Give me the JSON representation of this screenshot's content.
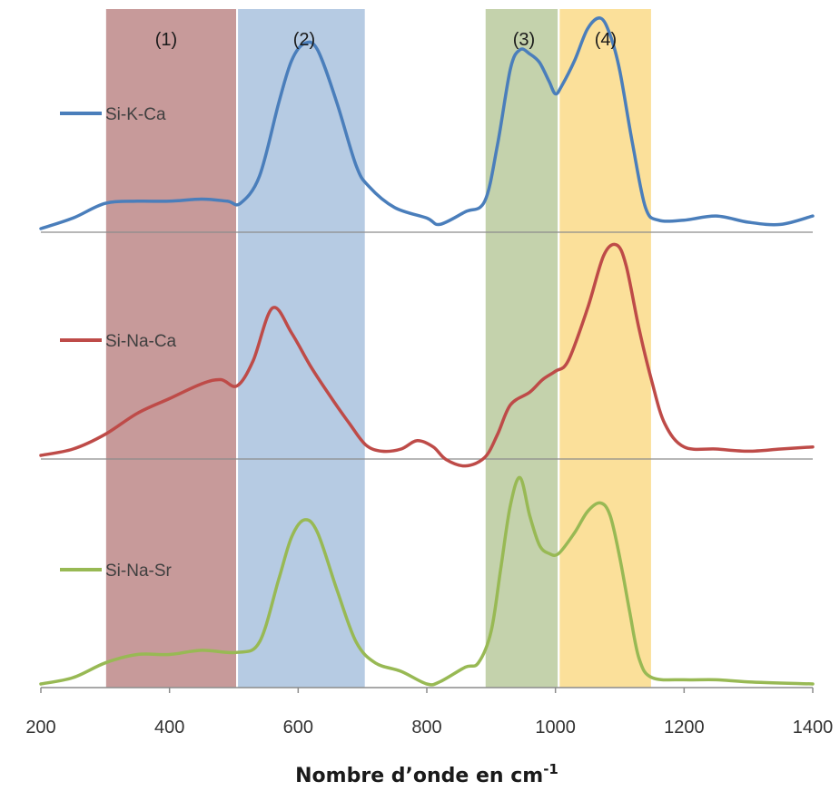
{
  "chart_data": {
    "type": "line",
    "xlabel": "Nombre d’onde en cm",
    "xlabel_sup": "-1",
    "xlim": [
      200,
      1400
    ],
    "xticks": [
      200,
      400,
      600,
      800,
      1000,
      1200,
      1400
    ],
    "grid": false,
    "bands": [
      {
        "label": "(1)",
        "from": 300,
        "to": 505,
        "color": "#c79a9a"
      },
      {
        "label": "(2)",
        "from": 505,
        "to": 705,
        "color": "#b6cbe3"
      },
      {
        "label": "(3)",
        "from": 890,
        "to": 1005,
        "color": "#c4d2ac"
      },
      {
        "label": "(4)",
        "from": 1005,
        "to": 1150,
        "color": "#fbe09a"
      }
    ],
    "series": [
      {
        "name": "Si-K-Ca",
        "color": "#4a7ebb",
        "x": [
          200,
          250,
          300,
          350,
          400,
          450,
          490,
          510,
          540,
          570,
          590,
          610,
          630,
          660,
          690,
          710,
          750,
          800,
          820,
          860,
          890,
          910,
          930,
          945,
          960,
          975,
          990,
          1000,
          1010,
          1030,
          1050,
          1070,
          1085,
          1100,
          1120,
          1140,
          1160,
          1200,
          1250,
          1300,
          1350,
          1400
        ],
        "y": [
          0.0,
          0.05,
          0.12,
          0.13,
          0.13,
          0.14,
          0.13,
          0.12,
          0.25,
          0.6,
          0.8,
          0.88,
          0.85,
          0.6,
          0.3,
          0.2,
          0.1,
          0.05,
          0.02,
          0.08,
          0.13,
          0.4,
          0.76,
          0.85,
          0.83,
          0.79,
          0.7,
          0.64,
          0.68,
          0.8,
          0.95,
          1.0,
          0.92,
          0.75,
          0.4,
          0.1,
          0.04,
          0.04,
          0.06,
          0.03,
          0.02,
          0.06
        ]
      },
      {
        "name": "Si-Na-Ca",
        "color": "#be4b48",
        "x": [
          200,
          250,
          300,
          350,
          400,
          450,
          480,
          505,
          530,
          560,
          590,
          620,
          650,
          680,
          705,
          730,
          760,
          785,
          810,
          830,
          860,
          890,
          910,
          930,
          960,
          980,
          1000,
          1020,
          1050,
          1075,
          1095,
          1110,
          1130,
          1150,
          1170,
          1200,
          1250,
          1300,
          1350,
          1400
        ],
        "y": [
          0.0,
          0.03,
          0.1,
          0.2,
          0.27,
          0.34,
          0.36,
          0.33,
          0.45,
          0.7,
          0.58,
          0.42,
          0.28,
          0.15,
          0.05,
          0.02,
          0.03,
          0.07,
          0.04,
          -0.02,
          -0.05,
          -0.01,
          0.1,
          0.24,
          0.3,
          0.36,
          0.4,
          0.45,
          0.7,
          0.95,
          1.0,
          0.9,
          0.6,
          0.35,
          0.15,
          0.04,
          0.03,
          0.02,
          0.03,
          0.04
        ]
      },
      {
        "name": "Si-Na-Sr",
        "color": "#98b954",
        "x": [
          200,
          250,
          300,
          350,
          400,
          450,
          505,
          540,
          570,
          590,
          610,
          630,
          660,
          690,
          720,
          760,
          800,
          820,
          860,
          880,
          900,
          915,
          930,
          945,
          960,
          975,
          990,
          1005,
          1030,
          1050,
          1070,
          1085,
          1100,
          1115,
          1130,
          1150,
          1200,
          1250,
          1300,
          1400
        ],
        "y": [
          0.0,
          0.03,
          0.1,
          0.14,
          0.14,
          0.16,
          0.15,
          0.2,
          0.5,
          0.7,
          0.78,
          0.72,
          0.45,
          0.2,
          0.1,
          0.06,
          0.0,
          0.01,
          0.08,
          0.1,
          0.25,
          0.55,
          0.85,
          0.98,
          0.8,
          0.66,
          0.62,
          0.62,
          0.72,
          0.82,
          0.86,
          0.8,
          0.6,
          0.35,
          0.12,
          0.03,
          0.02,
          0.02,
          0.01,
          0.0
        ]
      }
    ]
  }
}
